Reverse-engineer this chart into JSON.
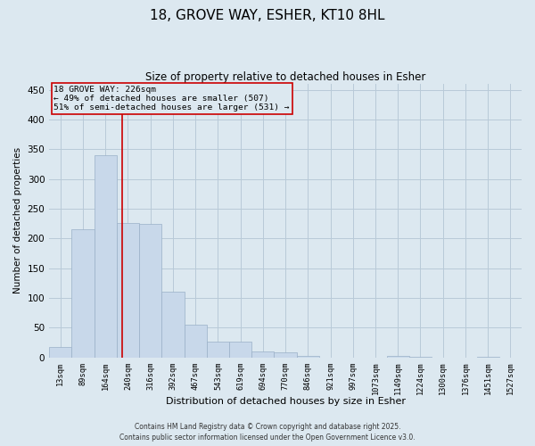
{
  "title_line1": "18, GROVE WAY, ESHER, KT10 8HL",
  "title_line2": "Size of property relative to detached houses in Esher",
  "xlabel": "Distribution of detached houses by size in Esher",
  "ylabel": "Number of detached properties",
  "bar_color": "#c8d8ea",
  "bar_edge_color": "#9ab0c8",
  "grid_color": "#b8cad8",
  "bg_color": "#dce8f0",
  "categories": [
    "13sqm",
    "89sqm",
    "164sqm",
    "240sqm",
    "316sqm",
    "392sqm",
    "467sqm",
    "543sqm",
    "619sqm",
    "694sqm",
    "770sqm",
    "846sqm",
    "921sqm",
    "997sqm",
    "1073sqm",
    "1149sqm",
    "1224sqm",
    "1300sqm",
    "1376sqm",
    "1451sqm",
    "1527sqm"
  ],
  "values": [
    18,
    216,
    340,
    226,
    225,
    110,
    55,
    27,
    26,
    10,
    8,
    2,
    0,
    0,
    0,
    2,
    1,
    0,
    0,
    1,
    0
  ],
  "ylim": [
    0,
    460
  ],
  "yticks": [
    0,
    50,
    100,
    150,
    200,
    250,
    300,
    350,
    400,
    450
  ],
  "vline_x_index": 2.75,
  "vline_color": "#cc0000",
  "annotation_line1": "18 GROVE WAY: 226sqm",
  "annotation_line2": "← 49% of detached houses are smaller (507)",
  "annotation_line3": "51% of semi-detached houses are larger (531) →",
  "annotation_box_color": "#cc0000",
  "footer_line1": "Contains HM Land Registry data © Crown copyright and database right 2025.",
  "footer_line2": "Contains public sector information licensed under the Open Government Licence v3.0."
}
